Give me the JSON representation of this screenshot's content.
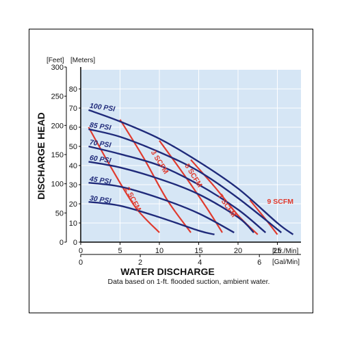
{
  "chart_data": {
    "type": "line",
    "xlabel": "WATER DISCHARGE",
    "ylabel": "DISCHARGE HEAD",
    "note": "Data based on 1-ft. flooded suction, ambient water.",
    "x_unit_primary": "[Ltr./Min]",
    "x_unit_secondary": "[Gal/Min]",
    "y_unit_feet": "[Feet]",
    "y_unit_meters": "[Meters]",
    "xlim": [
      0,
      28
    ],
    "ylim_meters": [
      0,
      90
    ],
    "x_ticks_lpm": [
      0,
      5,
      10,
      15,
      20,
      25
    ],
    "x_ticks_gpm": [
      0,
      2,
      4,
      6
    ],
    "y_ticks_meters": [
      0,
      10,
      20,
      30,
      40,
      50,
      60,
      70,
      80
    ],
    "y_ticks_feet": [
      "0",
      "50",
      "100",
      "150",
      "200",
      "250",
      "300"
    ],
    "grid": true,
    "colors": {
      "plot_background": "#d6e6f5",
      "pressure_curve": "#1f2a7a",
      "air_curve": "#e03a2e"
    },
    "pressure_series": [
      {
        "name": "100 PSI",
        "x": [
          1,
          5,
          10,
          15,
          20,
          25,
          27
        ],
        "y": [
          69,
          63,
          54,
          42,
          28,
          10,
          4
        ]
      },
      {
        "name": "85 PSI",
        "x": [
          1,
          5,
          10,
          15,
          20,
          25.5
        ],
        "y": [
          59,
          55,
          47,
          37,
          23,
          5
        ]
      },
      {
        "name": "70 PSI",
        "x": [
          1,
          5,
          10,
          15,
          20,
          23.5
        ],
        "y": [
          50,
          46,
          40,
          30,
          17,
          5
        ]
      },
      {
        "name": "60 PSI",
        "x": [
          1,
          5,
          10,
          15,
          20,
          22
        ],
        "y": [
          42,
          39,
          33,
          25,
          13,
          5
        ]
      },
      {
        "name": "45 PSI",
        "x": [
          1,
          5,
          10,
          15,
          19.5
        ],
        "y": [
          31,
          29,
          23,
          15,
          5
        ]
      },
      {
        "name": "30 PSI",
        "x": [
          1,
          5,
          10,
          15,
          17
        ],
        "y": [
          21,
          19,
          13,
          6,
          4
        ]
      }
    ],
    "air_series": [
      {
        "name": "2 SCFM",
        "x": [
          1,
          4,
          7,
          10
        ],
        "y": [
          60,
          38,
          18,
          5
        ]
      },
      {
        "name": "3 SCFM",
        "x": [
          5,
          8,
          11,
          14
        ],
        "y": [
          64,
          44,
          22,
          5
        ]
      },
      {
        "name": "5 SCFM",
        "x": [
          10,
          13,
          16,
          18
        ],
        "y": [
          53,
          36,
          18,
          5
        ]
      },
      {
        "name": "7 SCFM",
        "x": [
          14,
          17,
          20,
          22.5
        ],
        "y": [
          43,
          29,
          14,
          4
        ]
      },
      {
        "name": "9 SCFM",
        "x": [
          21.5,
          23.5,
          25
        ],
        "y": [
          22,
          12,
          4
        ]
      }
    ]
  }
}
